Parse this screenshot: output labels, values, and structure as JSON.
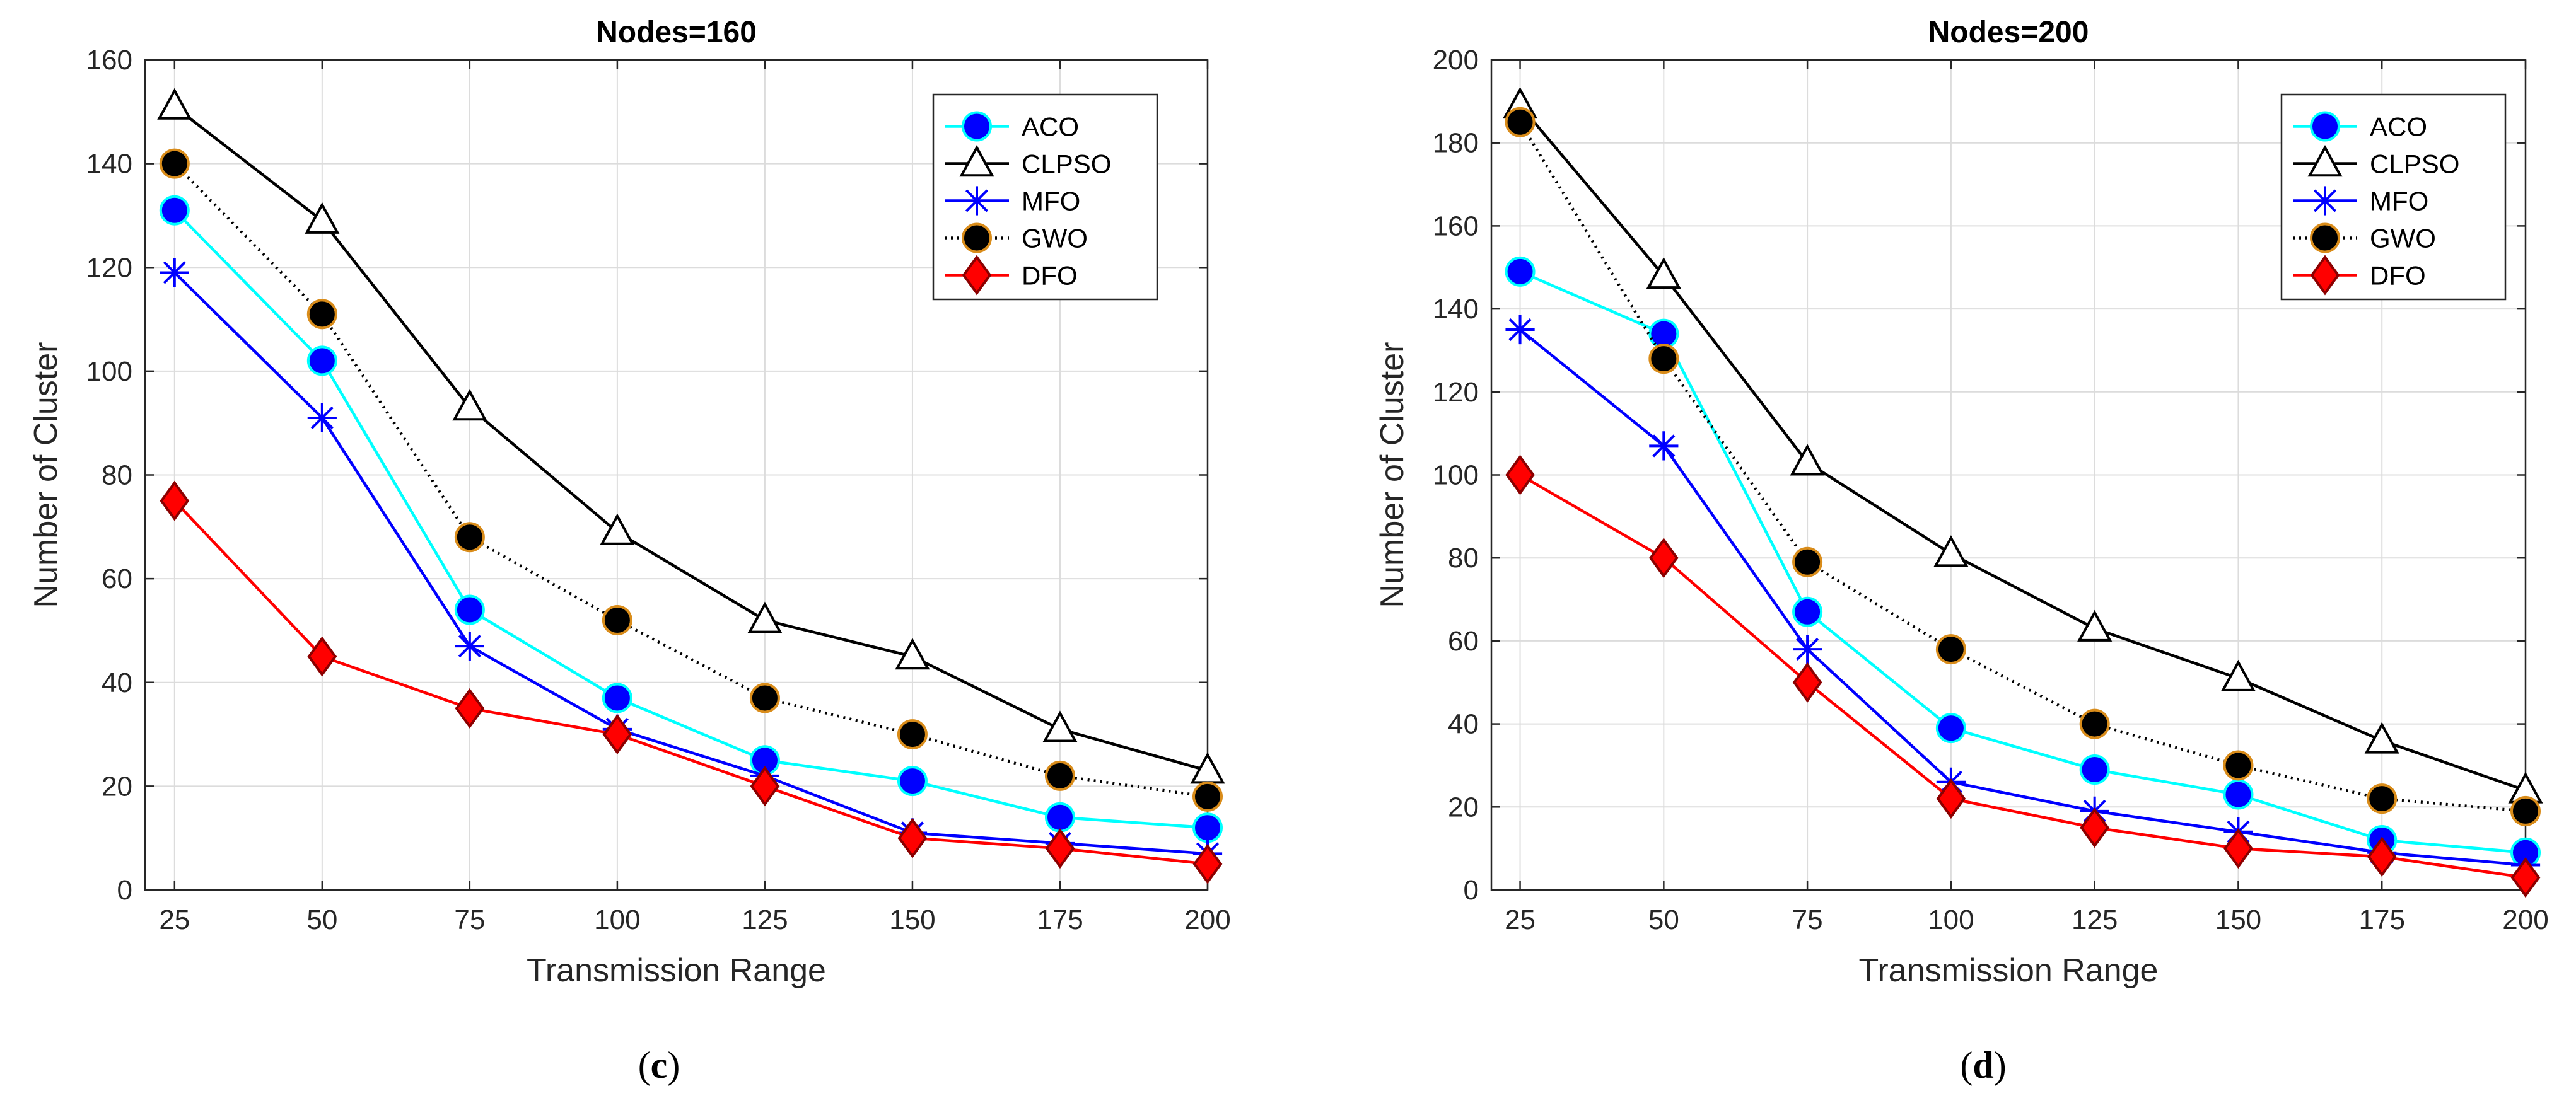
{
  "chart_data": [
    {
      "type": "line",
      "title": "Nodes=160",
      "xlabel": "Transmission Range",
      "ylabel": "Number of Cluster",
      "x": [
        25,
        50,
        75,
        100,
        125,
        150,
        175,
        200
      ],
      "xticks": [
        "25",
        "50",
        "75",
        "100",
        "125",
        "150",
        "175",
        "200"
      ],
      "xlim": [
        20,
        200
      ],
      "ylim": [
        0,
        160
      ],
      "yticks": [
        "0",
        "20",
        "40",
        "60",
        "80",
        "100",
        "120",
        "140",
        "160"
      ],
      "ytick_values": [
        0,
        20,
        40,
        60,
        80,
        100,
        120,
        140,
        160
      ],
      "grid": true,
      "legend_position": "top-right",
      "caption_letter": "c",
      "caption_open": "(",
      "caption_close": ")",
      "series": [
        {
          "name": "ACO",
          "values": [
            131,
            102,
            54,
            37,
            25,
            21,
            14,
            12
          ]
        },
        {
          "name": "CLPSO",
          "values": [
            151,
            129,
            93,
            69,
            52,
            45,
            31,
            23
          ]
        },
        {
          "name": "MFO",
          "values": [
            119,
            91,
            47,
            31,
            22,
            11,
            9,
            7
          ]
        },
        {
          "name": "GWO",
          "values": [
            140,
            111,
            68,
            52,
            37,
            30,
            22,
            18
          ]
        },
        {
          "name": "DFO",
          "values": [
            75,
            45,
            35,
            30,
            20,
            10,
            8,
            5
          ]
        }
      ]
    },
    {
      "type": "line",
      "title": "Nodes=200",
      "xlabel": "Transmission Range",
      "ylabel": "Number of Cluster",
      "x": [
        25,
        50,
        75,
        100,
        125,
        150,
        175,
        200
      ],
      "xticks": [
        "25",
        "50",
        "75",
        "100",
        "125",
        "150",
        "175",
        "200"
      ],
      "xlim": [
        20,
        200
      ],
      "ylim": [
        0,
        200
      ],
      "yticks": [
        "0",
        "20",
        "40",
        "60",
        "80",
        "100",
        "120",
        "140",
        "160",
        "180",
        "200"
      ],
      "ytick_values": [
        0,
        20,
        40,
        60,
        80,
        100,
        120,
        140,
        160,
        180,
        200
      ],
      "grid": true,
      "legend_position": "top-right",
      "caption_letter": "d",
      "caption_open": "(",
      "caption_close": ")",
      "series": [
        {
          "name": "ACO",
          "values": [
            149,
            134,
            67,
            39,
            29,
            23,
            12,
            9
          ]
        },
        {
          "name": "CLPSO",
          "values": [
            189,
            148,
            103,
            81,
            63,
            51,
            36,
            24
          ]
        },
        {
          "name": "MFO",
          "values": [
            135,
            107,
            58,
            26,
            19,
            14,
            9,
            6
          ]
        },
        {
          "name": "GWO",
          "values": [
            185,
            128,
            79,
            58,
            40,
            30,
            22,
            19
          ]
        },
        {
          "name": "DFO",
          "values": [
            100,
            80,
            50,
            22,
            15,
            10,
            8,
            3
          ]
        }
      ]
    }
  ],
  "series_styles": {
    "ACO": {
      "line": "#00ffff",
      "marker": "circle",
      "fill": "#0000ff",
      "edge": "#00ffff",
      "dash": ""
    },
    "CLPSO": {
      "line": "#000000",
      "marker": "triangle",
      "fill": "#ffffff",
      "edge": "#000000",
      "dash": ""
    },
    "MFO": {
      "line": "#0000ff",
      "marker": "star",
      "fill": "none",
      "edge": "#0000ff",
      "dash": ""
    },
    "GWO": {
      "line": "#000000",
      "marker": "circle",
      "fill": "#000000",
      "edge": "#d98c1a",
      "dash": "3,7"
    },
    "DFO": {
      "line": "#ff0000",
      "marker": "diamond",
      "fill": "#ff0000",
      "edge": "#8b0000",
      "dash": ""
    }
  }
}
